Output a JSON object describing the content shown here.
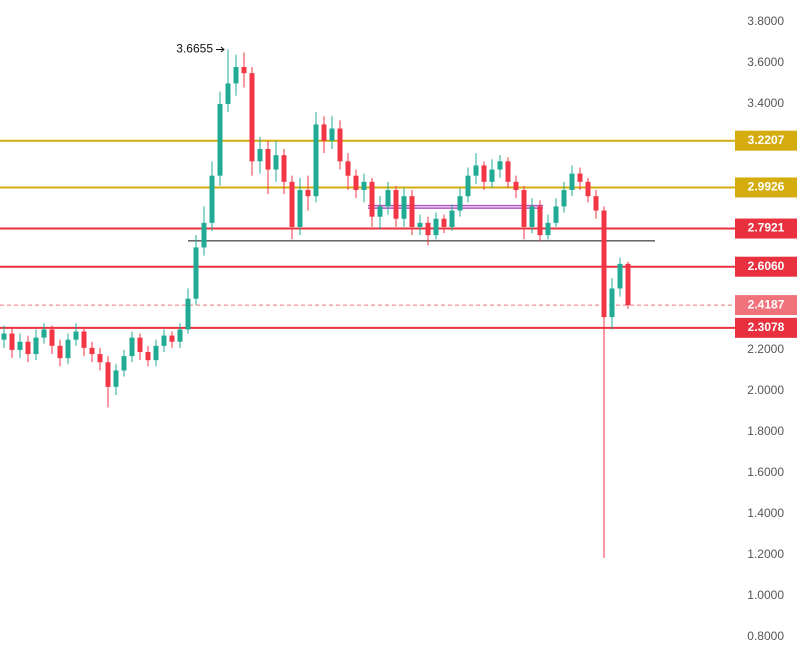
{
  "chart_data": {
    "type": "candlestick",
    "up_color": "#22ab94",
    "down_color": "#f23645",
    "ylim": [
      0.746,
      3.907
    ],
    "yticks": [
      {
        "value": 3.8,
        "label": "3.8000"
      },
      {
        "value": 3.6,
        "label": "3.6000"
      },
      {
        "value": 3.4,
        "label": "3.4000"
      },
      {
        "value": 3.2,
        "label": "3.2000"
      },
      {
        "value": 3.0,
        "label": "3.0000"
      },
      {
        "value": 2.8,
        "label": "2.8000"
      },
      {
        "value": 2.6,
        "label": "2.6000"
      },
      {
        "value": 2.4,
        "label": "2.4000"
      },
      {
        "value": 2.2,
        "label": "2.2000"
      },
      {
        "value": 2.0,
        "label": "2.0000"
      },
      {
        "value": 1.8,
        "label": "1.8000"
      },
      {
        "value": 1.6,
        "label": "1.6000"
      },
      {
        "value": 1.4,
        "label": "1.4000"
      },
      {
        "value": 1.2,
        "label": "1.2000"
      },
      {
        "value": 1.0,
        "label": "1.0000"
      },
      {
        "value": 0.8,
        "label": "0.8000"
      }
    ],
    "open": [
      2.25,
      2.28,
      2.2,
      2.24,
      2.18,
      2.26,
      2.3,
      2.22,
      2.16,
      2.25,
      2.29,
      2.21,
      2.18,
      2.14,
      2.02,
      2.1,
      2.17,
      2.26,
      2.19,
      2.15,
      2.22,
      2.27,
      2.24,
      2.3,
      2.45,
      2.7,
      2.82,
      3.05,
      3.4,
      3.5,
      3.58,
      3.55,
      3.12,
      3.18,
      3.08,
      3.15,
      3.02,
      2.8,
      2.98,
      2.95,
      3.3,
      3.22,
      3.28,
      3.12,
      3.05,
      2.98,
      3.02,
      2.85,
      2.9,
      2.98,
      2.84,
      2.95,
      2.8,
      2.82,
      2.76,
      2.84,
      2.8,
      2.88,
      2.95,
      3.05,
      3.1,
      3.02,
      3.08,
      3.12,
      3.02,
      2.98,
      2.8,
      2.9,
      2.76,
      2.82,
      2.9,
      2.98,
      3.06,
      3.02,
      2.95,
      2.88,
      2.36,
      2.5,
      2.62
    ],
    "high": [
      2.32,
      2.31,
      2.28,
      2.27,
      2.3,
      2.33,
      2.32,
      2.25,
      2.28,
      2.33,
      2.31,
      2.24,
      2.21,
      2.17,
      2.13,
      2.2,
      2.29,
      2.28,
      2.22,
      2.25,
      2.3,
      2.29,
      2.33,
      2.5,
      2.76,
      2.9,
      3.12,
      3.46,
      3.6655,
      3.64,
      3.65,
      3.58,
      3.24,
      3.22,
      3.22,
      3.18,
      3.05,
      3.04,
      3.05,
      3.36,
      3.34,
      3.34,
      3.32,
      3.16,
      3.08,
      3.06,
      3.04,
      2.95,
      3.02,
      3.0,
      2.99,
      2.98,
      2.86,
      2.85,
      2.87,
      2.86,
      2.91,
      2.99,
      3.09,
      3.16,
      3.12,
      3.13,
      3.15,
      3.14,
      3.05,
      3.0,
      2.94,
      2.93,
      2.86,
      2.94,
      3.02,
      3.1,
      3.09,
      3.04,
      2.98,
      2.9,
      2.55,
      2.65,
      2.63
    ],
    "low": [
      2.21,
      2.16,
      2.16,
      2.14,
      2.15,
      2.23,
      2.18,
      2.12,
      2.13,
      2.22,
      2.17,
      2.14,
      2.1,
      1.92,
      1.98,
      2.07,
      2.14,
      2.15,
      2.12,
      2.12,
      2.19,
      2.21,
      2.21,
      2.28,
      2.42,
      2.66,
      2.78,
      3.0,
      3.36,
      3.44,
      3.48,
      3.05,
      3.06,
      2.96,
      3.02,
      2.96,
      2.74,
      2.76,
      2.88,
      2.92,
      3.16,
      3.18,
      3.08,
      2.98,
      2.94,
      2.92,
      2.8,
      2.79,
      2.86,
      2.8,
      2.8,
      2.76,
      2.76,
      2.71,
      2.74,
      2.77,
      2.78,
      2.85,
      2.92,
      3.01,
      2.98,
      2.99,
      3.04,
      2.99,
      2.94,
      2.74,
      2.77,
      2.73,
      2.74,
      2.8,
      2.87,
      2.95,
      2.98,
      2.92,
      2.84,
      1.185,
      2.3,
      2.46,
      2.4
    ],
    "close": [
      2.28,
      2.2,
      2.24,
      2.18,
      2.26,
      2.3,
      2.22,
      2.16,
      2.25,
      2.29,
      2.21,
      2.18,
      2.14,
      2.02,
      2.1,
      2.17,
      2.26,
      2.19,
      2.15,
      2.22,
      2.27,
      2.24,
      2.3,
      2.45,
      2.7,
      2.82,
      3.05,
      3.4,
      3.5,
      3.58,
      3.55,
      3.12,
      3.18,
      3.08,
      3.15,
      3.02,
      2.8,
      2.98,
      2.95,
      3.3,
      3.22,
      3.28,
      3.12,
      3.05,
      2.98,
      3.02,
      2.85,
      2.9,
      2.98,
      2.84,
      2.95,
      2.8,
      2.82,
      2.76,
      2.84,
      2.8,
      2.88,
      2.95,
      3.05,
      3.1,
      3.02,
      3.08,
      3.12,
      3.02,
      2.98,
      2.8,
      2.9,
      2.76,
      2.82,
      2.9,
      2.98,
      3.06,
      3.02,
      2.95,
      2.88,
      2.36,
      2.5,
      2.62,
      2.4187
    ],
    "levels": [
      {
        "value": 3.2207,
        "label": "3.2207",
        "color": "#d4ac0d",
        "style": "solid"
      },
      {
        "value": 2.9926,
        "label": "2.9926",
        "color": "#d4ac0d",
        "style": "solid"
      },
      {
        "value": 2.7921,
        "label": "2.7921",
        "color": "#e8303f",
        "style": "solid"
      },
      {
        "value": 2.606,
        "label": "2.6060",
        "color": "#e8303f",
        "style": "solid"
      },
      {
        "value": 2.4187,
        "label": "2.4187",
        "color": "#f0727b",
        "style": "dashed"
      },
      {
        "value": 2.3078,
        "label": "2.3078",
        "color": "#e8303f",
        "style": "solid"
      }
    ],
    "trendlines": [
      {
        "value": 2.732,
        "color": "#111111"
      },
      {
        "value": 2.898,
        "color": "#9c27b0"
      }
    ],
    "annotation": {
      "label": "3.6655",
      "value": 3.6655
    }
  }
}
